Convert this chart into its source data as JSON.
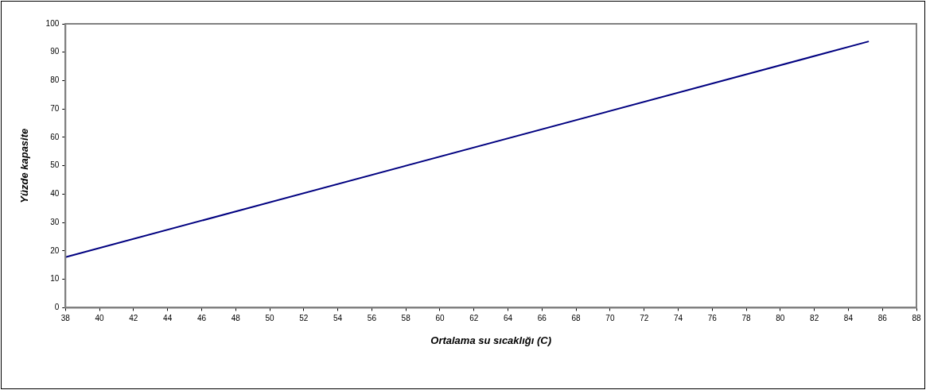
{
  "chart_data": {
    "type": "line",
    "xlabel": "Ortalama su sıcaklığı (C)",
    "ylabel": "Yüzde kapasite",
    "x": [
      38,
      85.2
    ],
    "series": [
      {
        "color": "#000080",
        "values": [
          17.8,
          93.8
        ]
      }
    ],
    "xlim": [
      38,
      88
    ],
    "xticks": [
      38,
      40,
      42,
      44,
      46,
      48,
      50,
      52,
      54,
      56,
      58,
      60,
      62,
      64,
      66,
      68,
      70,
      72,
      74,
      76,
      78,
      80,
      82,
      84,
      86,
      88
    ],
    "ylim": [
      0,
      100
    ],
    "yticks": [
      0,
      10,
      20,
      30,
      40,
      50,
      60,
      70,
      80,
      90,
      100
    ],
    "grid": false,
    "legend": false,
    "marker": "none",
    "line_style": "solid"
  }
}
